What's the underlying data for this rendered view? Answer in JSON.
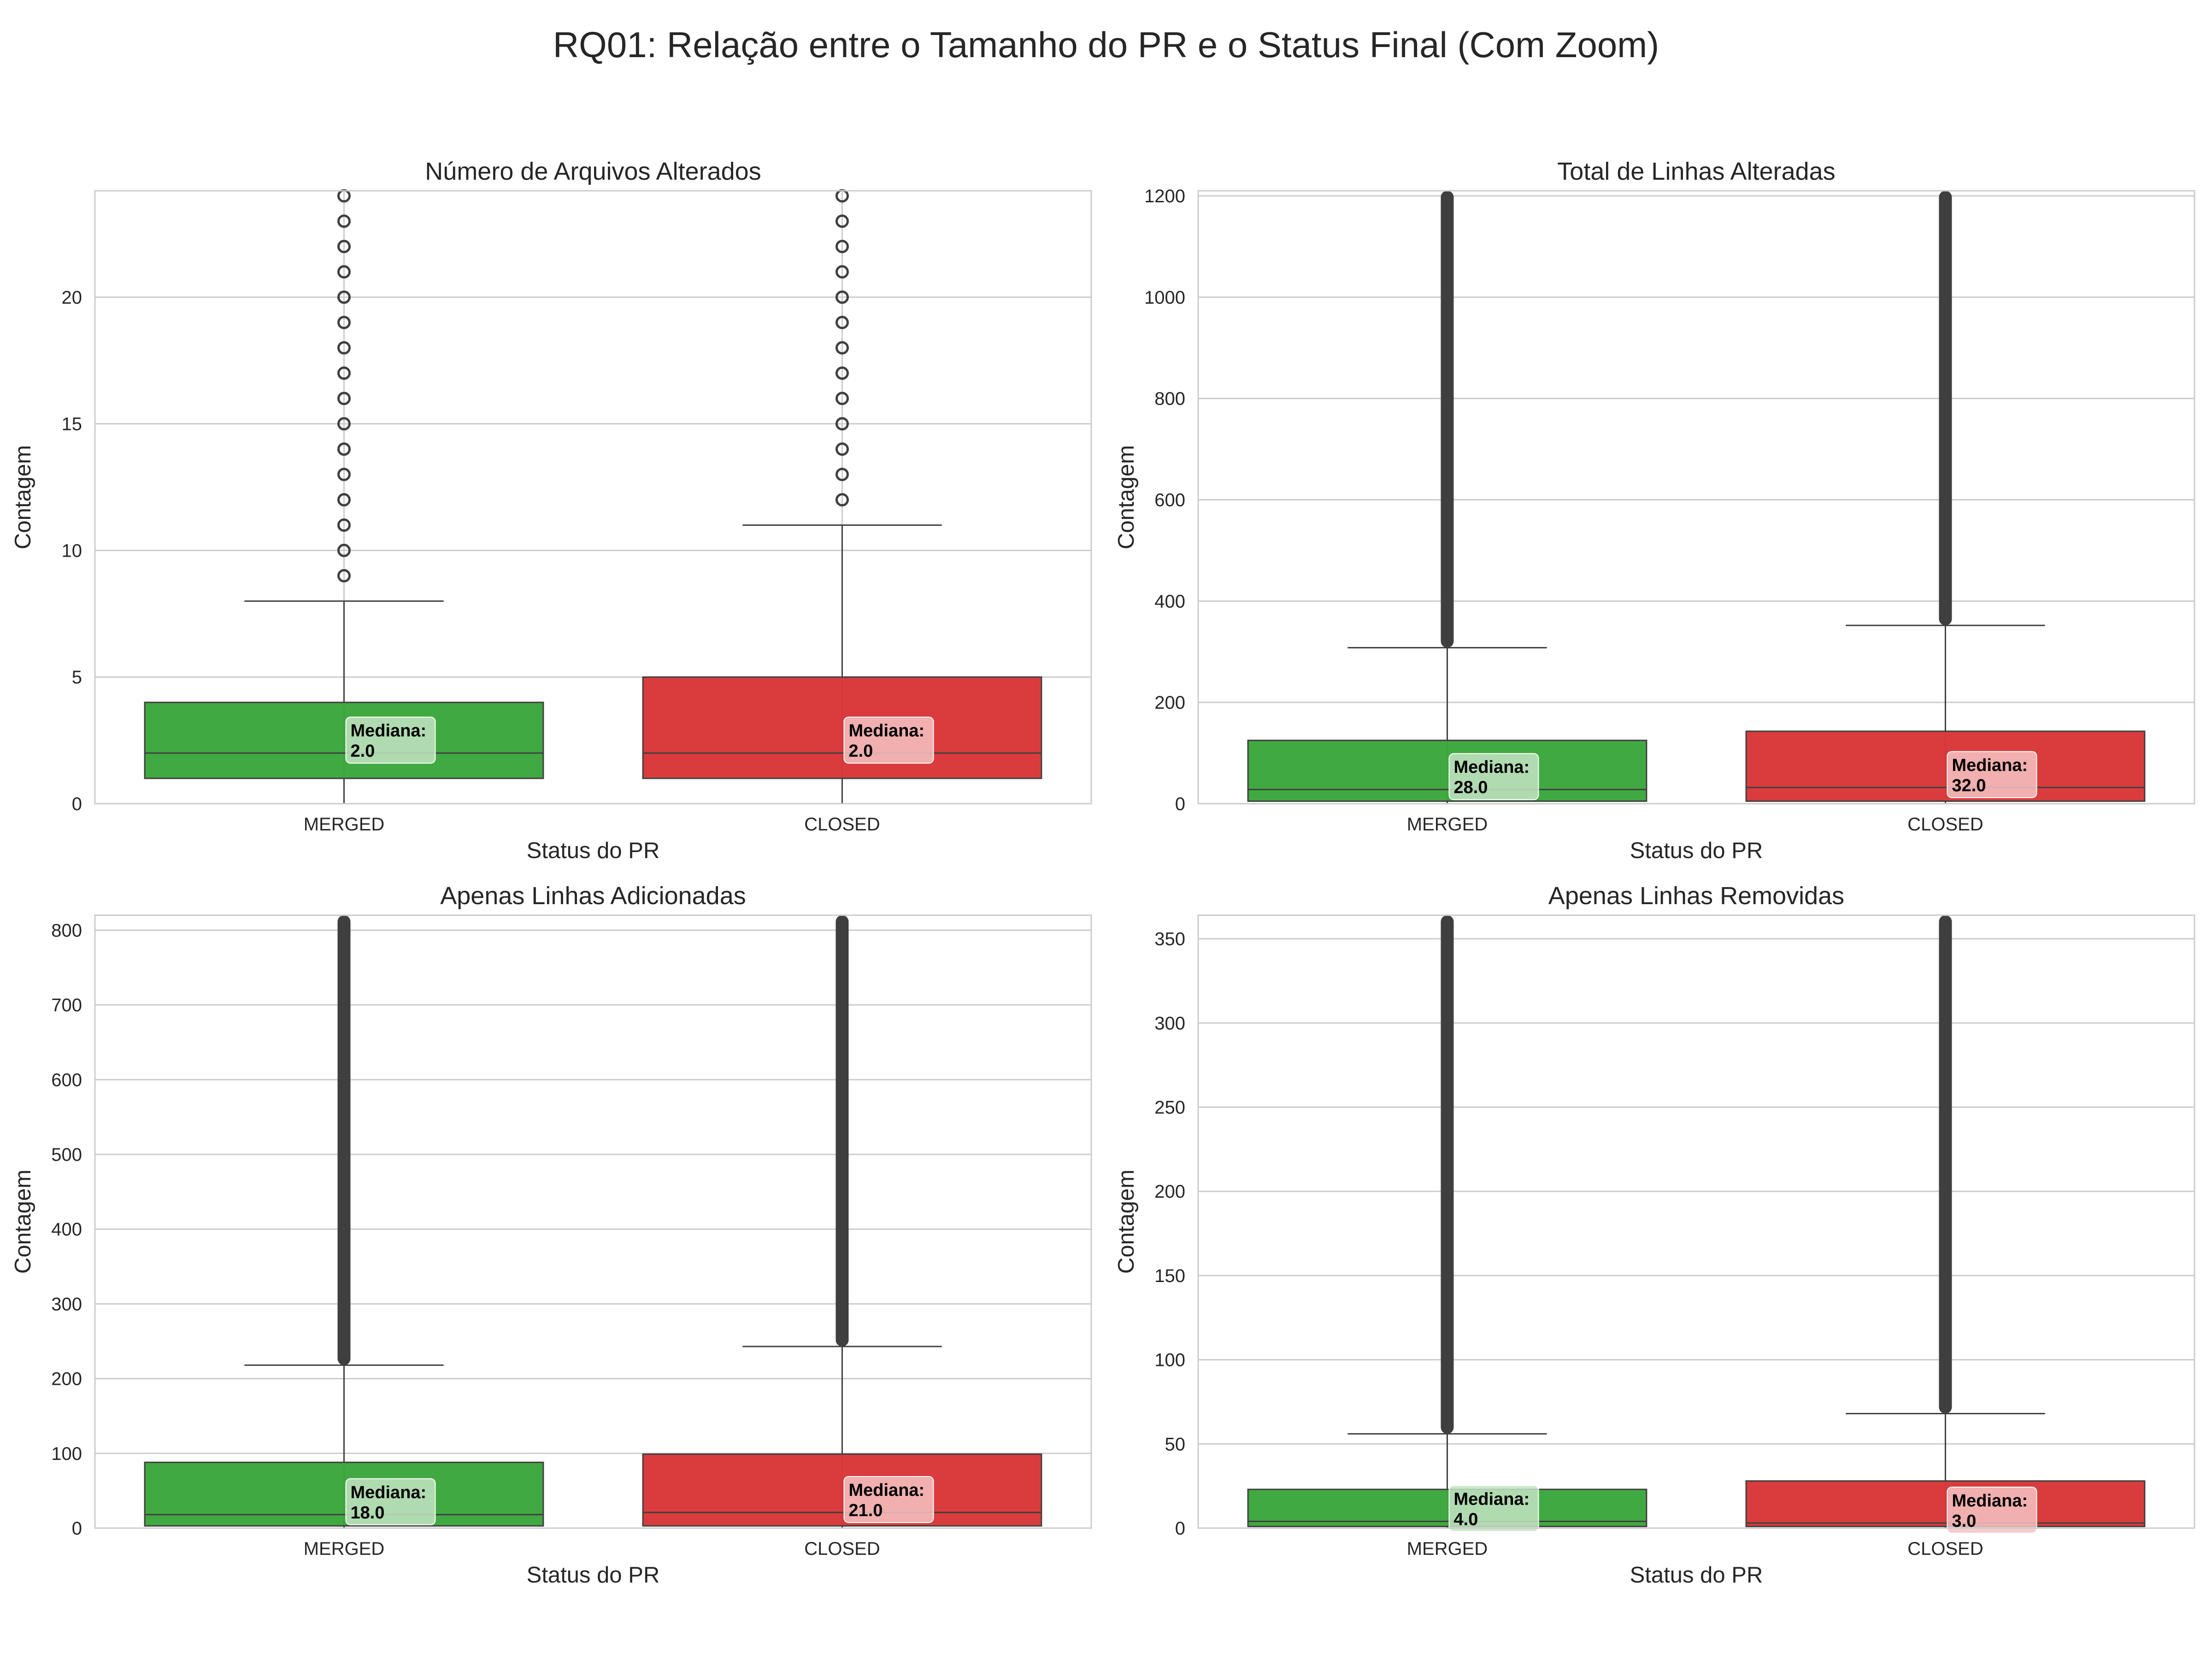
{
  "title": "RQ01: Relação entre o Tamanho do PR e o Status Final (Com Zoom)",
  "chart_data": [
    {
      "type": "box",
      "title": "Número de Arquivos Alterados",
      "xlabel": "Status do PR",
      "ylabel": "Contagem",
      "ylim": [
        0,
        24.2
      ],
      "yticks": [
        0,
        5,
        10,
        15,
        20
      ],
      "grid": true,
      "categories": [
        "MERGED",
        "CLOSED"
      ],
      "colors": [
        "#2ca02c",
        "#d62728"
      ],
      "boxes": [
        {
          "min": 0,
          "q1": 1,
          "median": 2,
          "q3": 4,
          "whisker_high": 8,
          "outliers": [
            9,
            10,
            11,
            12,
            13,
            14,
            15,
            16,
            17,
            18,
            19,
            20,
            21,
            22,
            23,
            24
          ],
          "median_label": "Mediana:\n2.0"
        },
        {
          "min": 0,
          "q1": 1,
          "median": 2,
          "q3": 5,
          "whisker_high": 11,
          "outliers": [
            12,
            13,
            14,
            15,
            16,
            17,
            18,
            19,
            20,
            21,
            22,
            23,
            24
          ],
          "median_label": "Mediana:\n2.0"
        }
      ]
    },
    {
      "type": "box",
      "title": "Total de Linhas Alteradas",
      "xlabel": "Status do PR",
      "ylabel": "Contagem",
      "ylim": [
        0,
        1210
      ],
      "yticks": [
        0,
        200,
        400,
        600,
        800,
        1000,
        1200
      ],
      "grid": true,
      "categories": [
        "MERGED",
        "CLOSED"
      ],
      "colors": [
        "#2ca02c",
        "#d62728"
      ],
      "boxes": [
        {
          "min": 0,
          "q1": 5,
          "median": 28,
          "q3": 125,
          "whisker_high": 308,
          "outlier_band": [
            308,
            1210
          ],
          "median_label": "Mediana:\n28.0"
        },
        {
          "min": 0,
          "q1": 5,
          "median": 32,
          "q3": 143,
          "whisker_high": 352,
          "outlier_band": [
            352,
            1210
          ],
          "median_label": "Mediana:\n32.0"
        }
      ]
    },
    {
      "type": "box",
      "title": "Apenas Linhas Adicionadas",
      "xlabel": "Status do PR",
      "ylabel": "Contagem",
      "ylim": [
        0,
        820
      ],
      "yticks": [
        0,
        100,
        200,
        300,
        400,
        500,
        600,
        700,
        800
      ],
      "grid": true,
      "categories": [
        "MERGED",
        "CLOSED"
      ],
      "colors": [
        "#2ca02c",
        "#d62728"
      ],
      "boxes": [
        {
          "min": 0,
          "q1": 3,
          "median": 18,
          "q3": 88,
          "whisker_high": 218,
          "outlier_band": [
            218,
            820
          ],
          "median_label": "Mediana:\n18.0"
        },
        {
          "min": 0,
          "q1": 3,
          "median": 21,
          "q3": 99,
          "whisker_high": 243,
          "outlier_band": [
            243,
            820
          ],
          "median_label": "Mediana:\n21.0"
        }
      ]
    },
    {
      "type": "box",
      "title": "Apenas Linhas Removidas",
      "xlabel": "Status do PR",
      "ylabel": "Contagem",
      "ylim": [
        0,
        364
      ],
      "yticks": [
        0,
        50,
        100,
        150,
        200,
        250,
        300,
        350
      ],
      "grid": true,
      "categories": [
        "MERGED",
        "CLOSED"
      ],
      "colors": [
        "#2ca02c",
        "#d62728"
      ],
      "boxes": [
        {
          "min": 0,
          "q1": 1,
          "median": 4,
          "q3": 23,
          "whisker_high": 56,
          "outlier_band": [
            56,
            364
          ],
          "median_label": "Mediana:\n4.0"
        },
        {
          "min": 0,
          "q1": 1,
          "median": 3,
          "q3": 28,
          "whisker_high": 68,
          "outlier_band": [
            68,
            364
          ],
          "median_label": "Mediana:\n3.0"
        }
      ]
    }
  ]
}
